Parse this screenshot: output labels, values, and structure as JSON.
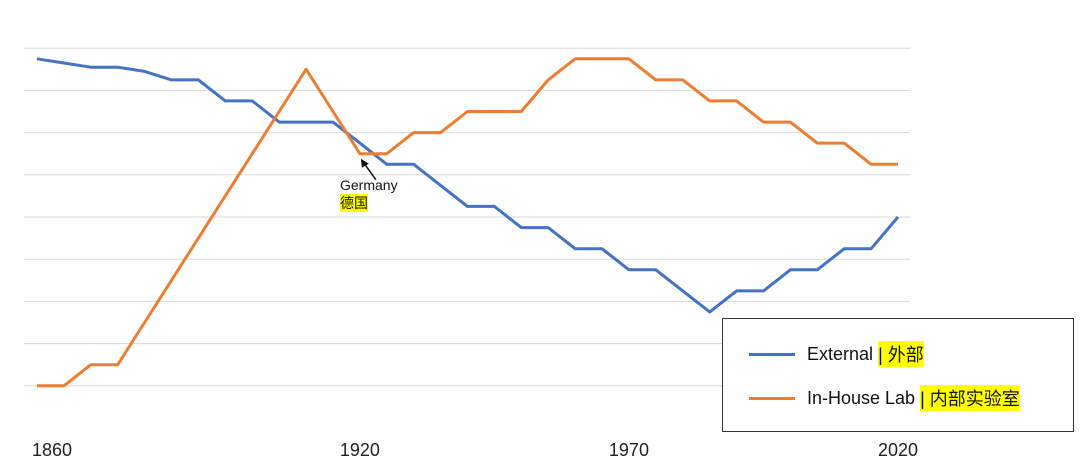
{
  "chart_data": {
    "type": "line",
    "x": [
      1860,
      1865,
      1870,
      1875,
      1880,
      1885,
      1890,
      1895,
      1900,
      1905,
      1910,
      1915,
      1920,
      1925,
      1930,
      1935,
      1940,
      1945,
      1950,
      1955,
      1960,
      1965,
      1970,
      1975,
      1980,
      1985,
      1990,
      1995,
      2000,
      2005,
      2010,
      2015,
      2020
    ],
    "series": [
      {
        "name": "External",
        "name_zh": "| 外部",
        "color": "#4472c4",
        "values": [
          17.5,
          17.3,
          17.1,
          17.1,
          16.9,
          16.5,
          16.5,
          15.5,
          15.5,
          14.5,
          14.5,
          14.5,
          13.5,
          12.5,
          12.5,
          11.5,
          10.5,
          10.5,
          9.5,
          9.5,
          8.5,
          8.5,
          7.5,
          7.5,
          6.5,
          5.5,
          6.5,
          6.5,
          7.5,
          7.5,
          8.5,
          8.5,
          10.0
        ]
      },
      {
        "name": "In-House Lab",
        "name_zh": "| 内部实验室",
        "color": "#ed7d31",
        "values": [
          2.0,
          2.0,
          3.0,
          3.0,
          5.0,
          7.0,
          9.0,
          11.0,
          13.0,
          15.0,
          17.0,
          15.0,
          13.0,
          13.0,
          14.0,
          14.0,
          15.0,
          15.0,
          15.0,
          16.5,
          17.5,
          17.5,
          17.5,
          16.5,
          16.5,
          15.5,
          15.5,
          14.5,
          14.5,
          13.5,
          13.5,
          12.5,
          12.5
        ]
      }
    ],
    "x_ticks": [
      "1860",
      "1920",
      "1970",
      "2020"
    ],
    "ylim": [
      0,
      20
    ],
    "grid": true,
    "legend_position": "bottom-right",
    "annotation": {
      "text_en": "Germany",
      "text_zh": "德国",
      "x": 1920
    }
  }
}
